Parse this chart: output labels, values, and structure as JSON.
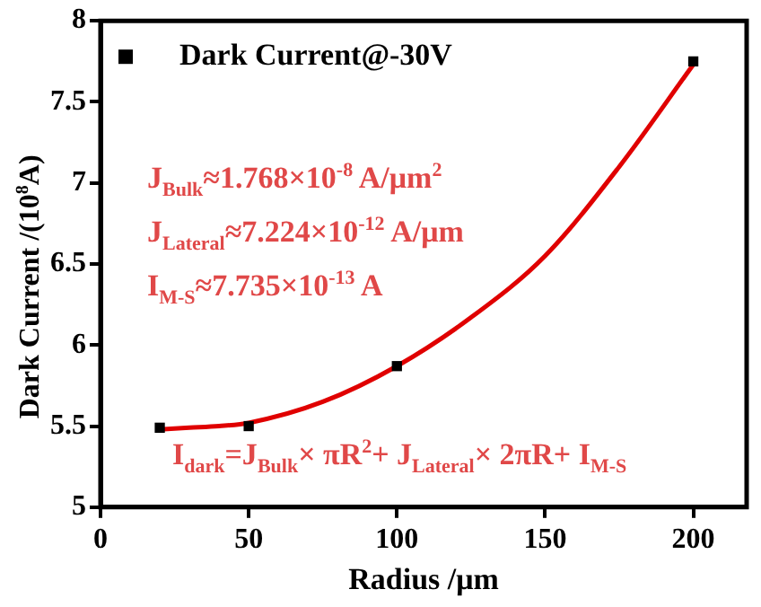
{
  "chart_data": {
    "type": "scatter",
    "xlabel": "Radius /μm",
    "ylabel": "Dark Current /(10$^{8}$A)",
    "series": [
      {
        "name": "Dark Current@-30V",
        "marker": "square",
        "color": "#000000",
        "x": [
          20,
          50,
          100,
          200
        ],
        "values": [
          5.49,
          5.5,
          5.87,
          7.75
        ]
      },
      {
        "type": "line",
        "color": "#e00000",
        "x": [
          20,
          30,
          40,
          50,
          75,
          100,
          125,
          150,
          175,
          200
        ],
        "values": [
          5.48,
          5.49,
          5.5,
          5.52,
          5.65,
          5.87,
          6.17,
          6.55,
          7.1,
          7.73
        ]
      }
    ],
    "xlim": [
      0,
      218
    ],
    "xticks": [
      0,
      50,
      100,
      150,
      200
    ],
    "ylim": [
      5,
      8
    ],
    "yticks": [
      5,
      5.5,
      6,
      6.5,
      7,
      7.5,
      8
    ],
    "grid": false,
    "legend": "top left",
    "annotations": [
      "J$_{Bulk}$≈1.768×10$^{-8}$ A/μm$^{2}$",
      "J$_{Lateral}$≈7.224×10$^{-12}$ A/μm",
      "I$_{M-S}$≈7.735×10$^{-13}$ A",
      "I$_{dark}$=J$_{Bulk}$× πR$^{2}$+ J$_{Lateral}$× 2πR+ I$_{M-S}$"
    ]
  }
}
